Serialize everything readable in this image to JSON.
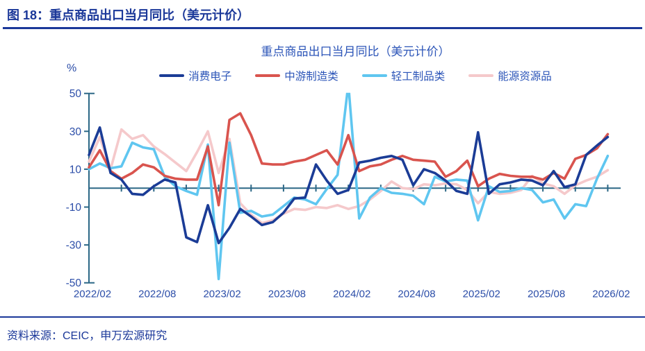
{
  "header": {
    "title": "图 18：重点商品出口当月同比（美元计价）"
  },
  "footer": {
    "source": "资料来源：CEIC，申万宏源研究"
  },
  "chart_data": {
    "type": "line",
    "title": "重点商品出口当月同比（美元计价）",
    "unit_label": "%",
    "ylim": [
      -50,
      50
    ],
    "y_ticks": [
      50,
      30,
      10,
      -10,
      -30,
      -50
    ],
    "grid": false,
    "legend_position": "top",
    "x_tick_labels": [
      "2022/02",
      "2022/08",
      "2023/02",
      "2023/08",
      "2024/02",
      "2024/08",
      "2025/02",
      "2025/08",
      "2026/02"
    ],
    "x": [
      "2022/02",
      "2022/03",
      "2022/04",
      "2022/05",
      "2022/06",
      "2022/07",
      "2022/08",
      "2022/09",
      "2022/10",
      "2022/11",
      "2022/12",
      "2023/01",
      "2023/02",
      "2023/03",
      "2023/04",
      "2023/05",
      "2023/06",
      "2023/07",
      "2023/08",
      "2023/09",
      "2023/10",
      "2023/11",
      "2023/12",
      "2024/01",
      "2024/02",
      "2024/03",
      "2024/04",
      "2024/05",
      "2024/06",
      "2024/07",
      "2024/08",
      "2024/09",
      "2024/10",
      "2024/11",
      "2024/12",
      "2025/01",
      "2025/02",
      "2025/03",
      "2025/04",
      "2025/05",
      "2025/06",
      "2025/07",
      "2025/08",
      "2025/09",
      "2025/10",
      "2025/11",
      "2025/12",
      "2026/01",
      "2026/02"
    ],
    "series": [
      {
        "name": "能源资源品",
        "color": "#F5C9CB",
        "values": [
          14,
          27,
          10,
          31,
          26,
          28,
          22,
          18,
          13.5,
          9,
          19,
          30,
          8,
          26,
          -8,
          -14,
          -18.5,
          -17,
          -13.5,
          -11,
          -11.5,
          -10,
          -10.5,
          -9,
          -11,
          -9.5,
          -6,
          -1.5,
          3.5,
          0,
          -0.5,
          2,
          1.5,
          2.5,
          2,
          -1,
          -8,
          -2,
          -3,
          -2.5,
          -1,
          6.5,
          2.5,
          1,
          -3,
          1.5,
          4,
          6,
          9.5
        ]
      },
      {
        "name": "轻工制品类",
        "color": "#5FC6F0",
        "values": [
          10,
          13,
          10.5,
          11.5,
          24,
          21.5,
          20.5,
          6,
          1,
          -1.5,
          -3.5,
          23,
          -48,
          24,
          -13,
          -12,
          -15,
          -14,
          -9.5,
          -5,
          -6,
          -8.5,
          -0.5,
          7,
          55,
          -16,
          -5,
          0,
          -2.5,
          -3,
          -4,
          -8.5,
          6,
          3.5,
          4.5,
          4,
          -17,
          1,
          -2,
          -1.5,
          0,
          -1,
          -7.5,
          -6,
          -16,
          -8.5,
          -9.5,
          5,
          17
        ]
      },
      {
        "name": "中游制造类",
        "color": "#D9544E",
        "values": [
          11,
          20,
          9,
          5,
          8,
          12.5,
          11,
          6.5,
          5,
          4.5,
          4.5,
          22,
          -9,
          36,
          39.5,
          28,
          13,
          12.5,
          12.5,
          14,
          15,
          17.5,
          20,
          12.5,
          28,
          9,
          11.5,
          12.5,
          15,
          17,
          15,
          14.5,
          14,
          6,
          9,
          14.5,
          1,
          5,
          7.5,
          6.5,
          6,
          6,
          4.5,
          8,
          5,
          15.5,
          17.5,
          21,
          28.5
        ]
      },
      {
        "name": "消费电子",
        "color": "#1B3C96",
        "values": [
          17.5,
          32,
          8,
          4.5,
          -3,
          -3.5,
          1,
          4.5,
          3,
          -26,
          -28.5,
          -9,
          -29,
          -21,
          -11,
          -15,
          -19.5,
          -18,
          -13,
          -5.5,
          -5,
          12.5,
          4,
          -3,
          -1,
          13.5,
          14.5,
          16,
          17,
          15,
          1.5,
          10,
          8,
          4,
          -1.5,
          -3,
          29.5,
          -3,
          2,
          3,
          4.5,
          4,
          1.5,
          9,
          0.5,
          2,
          17.5,
          22.5,
          27
        ]
      }
    ],
    "legend_order": [
      "消费电子",
      "中游制造类",
      "轻工制品类",
      "能源资源品"
    ],
    "axis_color": "#2B6786",
    "tick_text_color": "#2B4DA8"
  }
}
